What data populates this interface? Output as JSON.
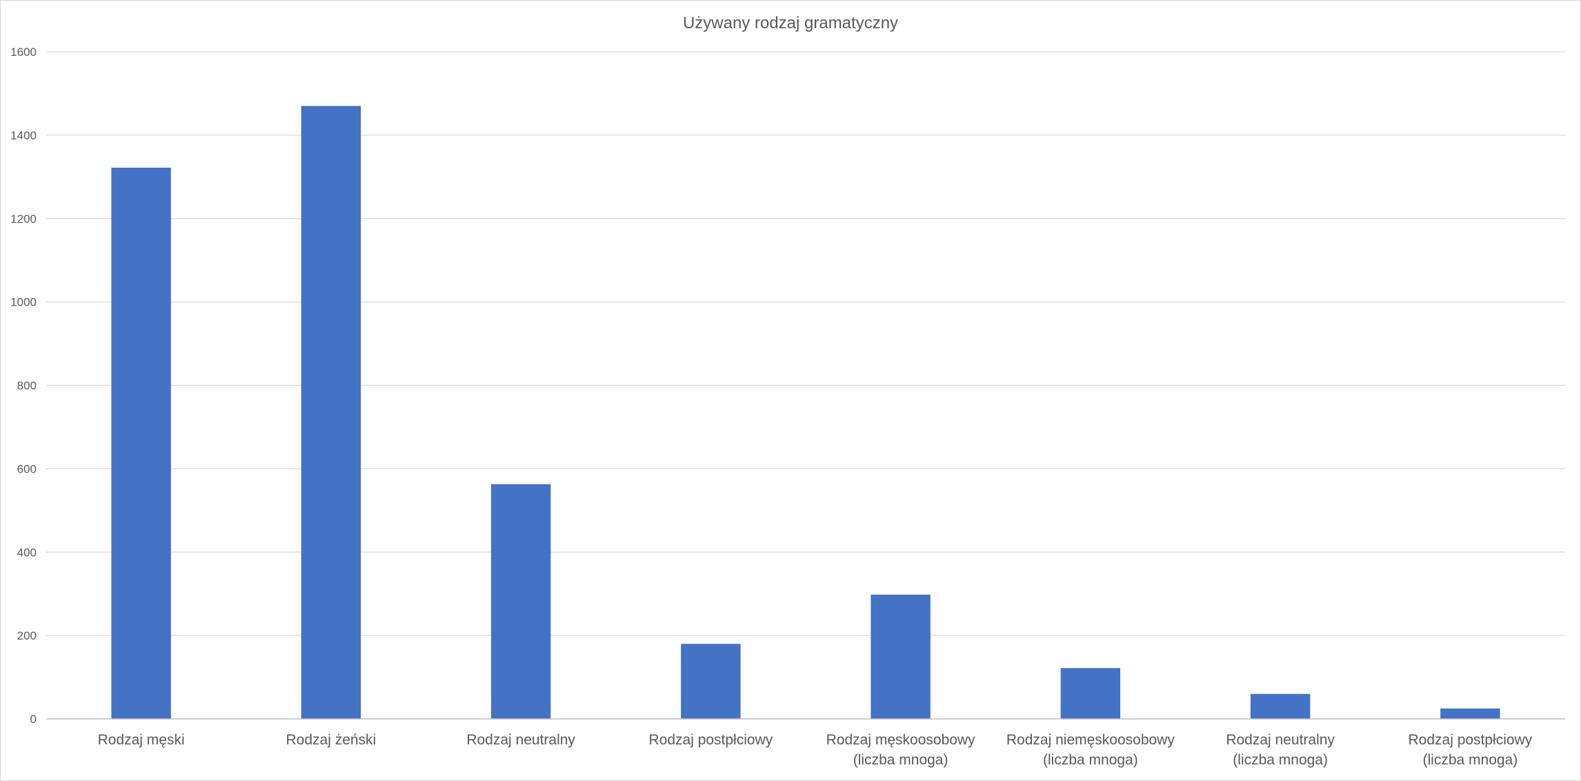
{
  "chart_data": {
    "type": "bar",
    "title": "Używany rodzaj gramatyczny",
    "xlabel": "",
    "ylabel": "",
    "ylim": [
      0,
      1600
    ],
    "yticks": [
      0,
      200,
      400,
      600,
      800,
      1000,
      1200,
      1400,
      1600
    ],
    "grid": true,
    "legend": "none",
    "bar_color": "#4472C4",
    "categories": [
      [
        "Rodzaj męski"
      ],
      [
        "Rodzaj żeński"
      ],
      [
        "Rodzaj neutralny"
      ],
      [
        "Rodzaj postpłciowy"
      ],
      [
        "Rodzaj męskoosobowy",
        "(liczba mnoga)"
      ],
      [
        "Rodzaj niemęskoosobowy",
        "(liczba mnoga)"
      ],
      [
        "Rodzaj neutralny",
        "(liczba mnoga)"
      ],
      [
        "Rodzaj postpłciowy",
        "(liczba mnoga)"
      ]
    ],
    "values": [
      1322,
      1470,
      563,
      180,
      298,
      122,
      60,
      25
    ]
  }
}
